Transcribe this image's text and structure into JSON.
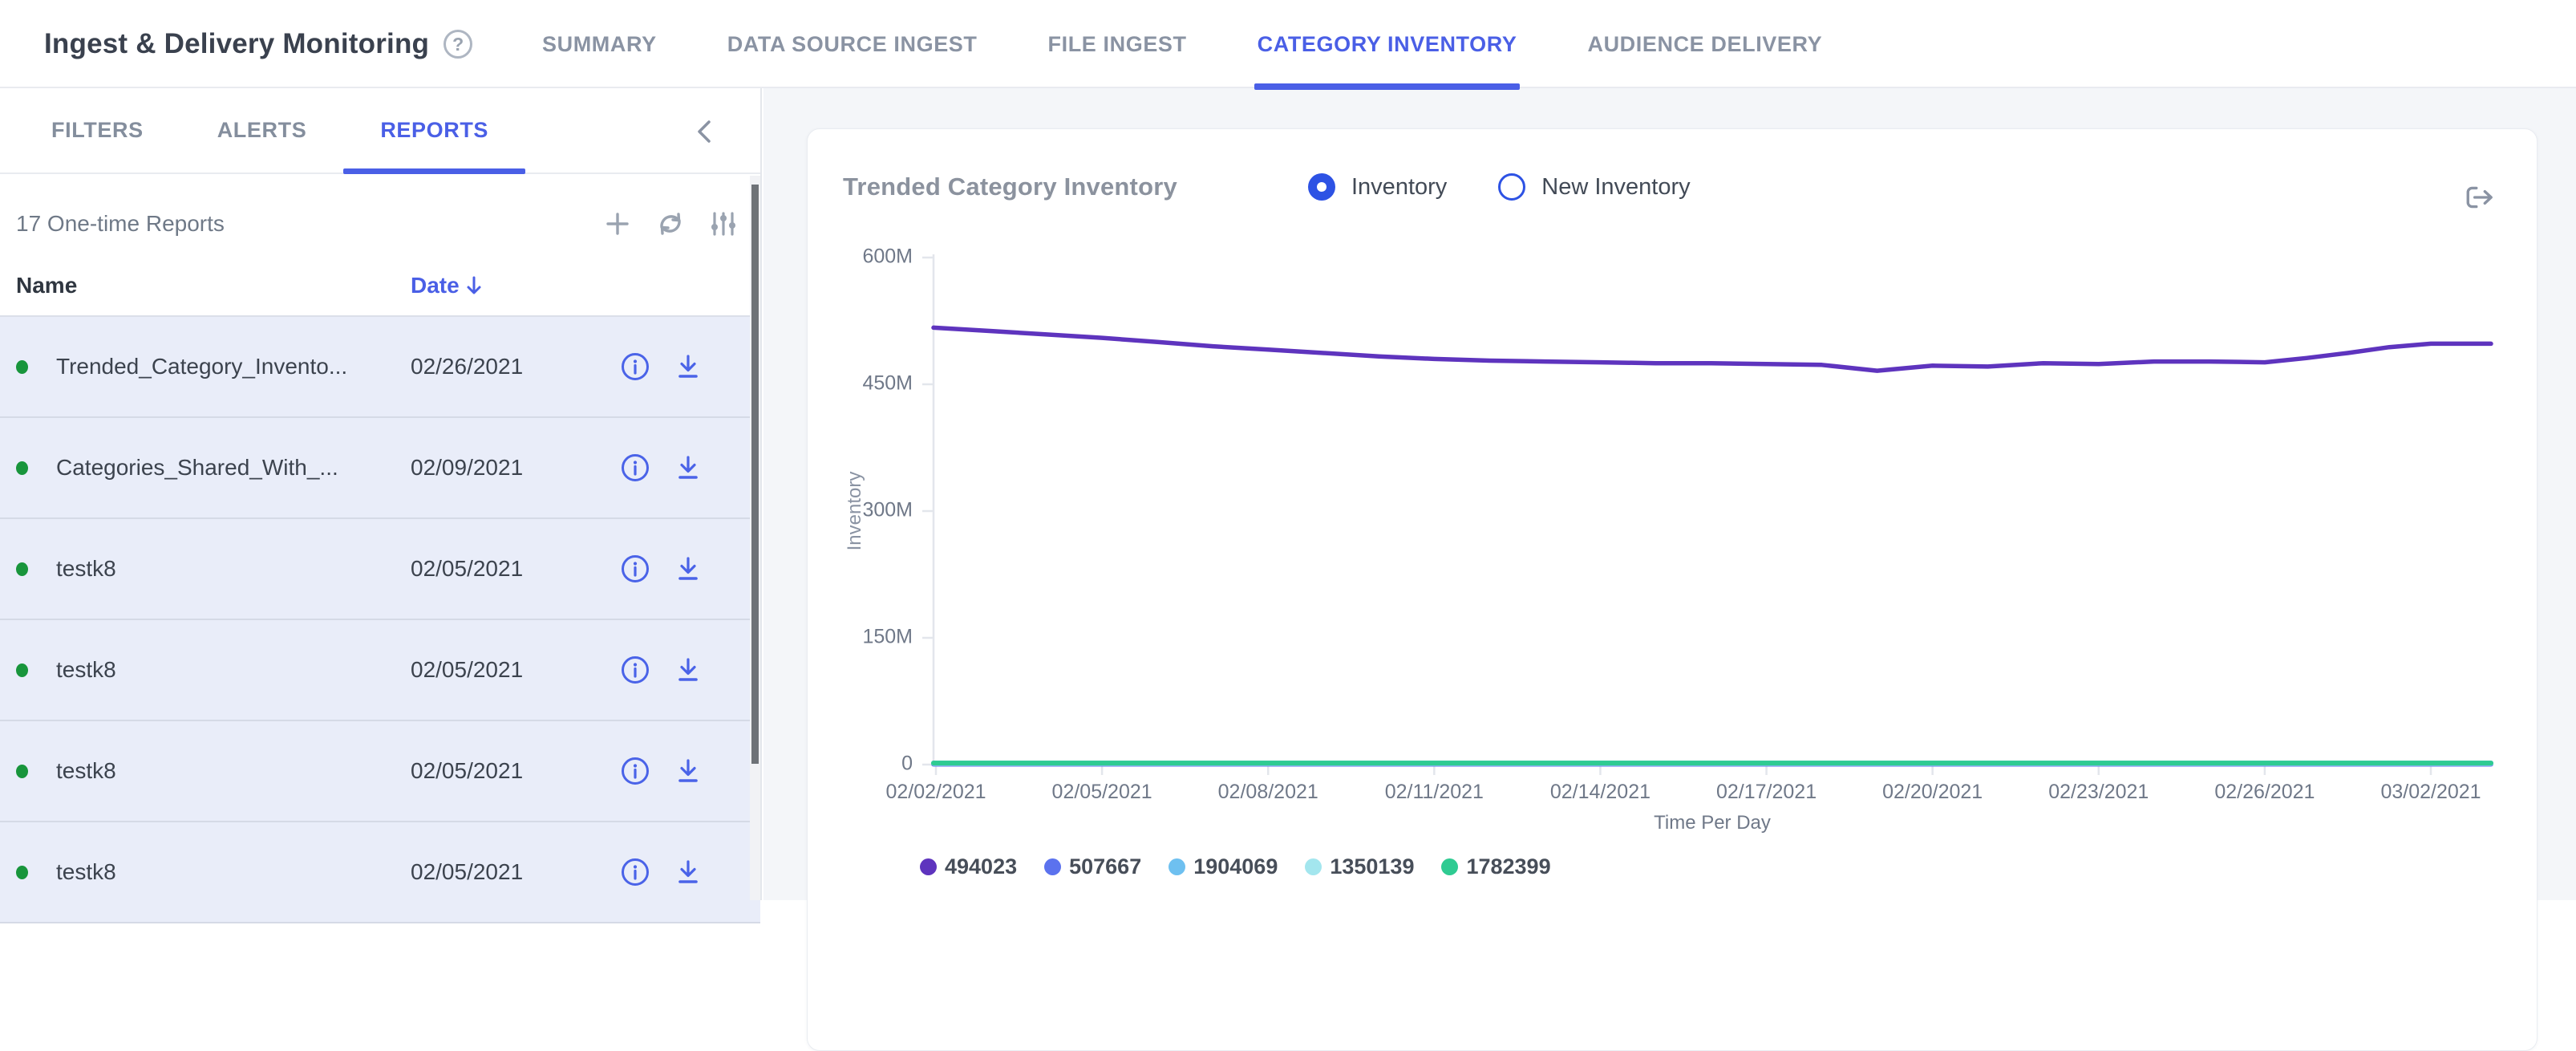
{
  "header": {
    "title": "Ingest & Delivery Monitoring",
    "help_glyph": "?",
    "tabs": [
      {
        "label": "SUMMARY",
        "active": false
      },
      {
        "label": "DATA SOURCE INGEST",
        "active": false
      },
      {
        "label": "FILE INGEST",
        "active": false
      },
      {
        "label": "CATEGORY INVENTORY",
        "active": true
      },
      {
        "label": "AUDIENCE DELIVERY",
        "active": false
      }
    ]
  },
  "sidebar": {
    "tabs": [
      {
        "label": "FILTERS",
        "active": false
      },
      {
        "label": "ALERTS",
        "active": false
      },
      {
        "label": "REPORTS",
        "active": true
      }
    ],
    "list_header": {
      "count_label": "17 One-time Reports"
    },
    "table": {
      "columns": [
        {
          "label": "Name",
          "sorted": null
        },
        {
          "label": "Date",
          "sorted": "desc"
        }
      ],
      "status_color": "#18953c",
      "rows": [
        {
          "name": "Trended_Category_Invento...",
          "date": "02/26/2021"
        },
        {
          "name": "Categories_Shared_With_...",
          "date": "02/09/2021"
        },
        {
          "name": "testk8",
          "date": "02/05/2021"
        },
        {
          "name": "testk8",
          "date": "02/05/2021"
        },
        {
          "name": "testk8",
          "date": "02/05/2021"
        },
        {
          "name": "testk8",
          "date": "02/05/2021"
        }
      ]
    }
  },
  "main": {
    "card": {
      "title": "Trended Category Inventory",
      "radios": [
        {
          "label": "Inventory",
          "selected": true
        },
        {
          "label": "New Inventory",
          "selected": false
        }
      ]
    }
  },
  "colors": {
    "accent_blue": "#4a5fe6",
    "icon_blue": "#4a63e8",
    "icon_gray": "#9aa3b0",
    "axis_text": "#6f7888",
    "axis_line": "#e3e6ec"
  },
  "chart_data": {
    "type": "line",
    "title": "Trended Category Inventory",
    "xlabel": "Time Per Day",
    "ylabel": "Inventory",
    "grid": false,
    "legend_position": "bottom",
    "ylim_m": [
      0,
      600
    ],
    "y_ticks": [
      {
        "label": "600M",
        "value_m": 600
      },
      {
        "label": "450M",
        "value_m": 450
      },
      {
        "label": "300M",
        "value_m": 300
      },
      {
        "label": "150M",
        "value_m": 150
      },
      {
        "label": "0",
        "value_m": 0
      }
    ],
    "x_tick_labels": [
      "02/02/2021",
      "02/05/2021",
      "02/08/2021",
      "02/11/2021",
      "02/14/2021",
      "02/17/2021",
      "02/20/2021",
      "02/23/2021",
      "02/26/2021",
      "03/02/2021"
    ],
    "x_tick_days": [
      0,
      3,
      6,
      9,
      12,
      15,
      18,
      21,
      24,
      28
    ],
    "x_start_date": "02/02/2021",
    "series": [
      {
        "name": "494023",
        "color": "#5e34be",
        "values_m": [
          517,
          513,
          509,
          505,
          500,
          495,
          491,
          487,
          483,
          480,
          478,
          477,
          476,
          475,
          475,
          474,
          473,
          466,
          472,
          471,
          475,
          474,
          477,
          477,
          476,
          481,
          487,
          494,
          498
        ]
      },
      {
        "name": "507667",
        "color": "#5b72ee",
        "flat_value_m": 0.51
      },
      {
        "name": "1904069",
        "color": "#6ec0f0",
        "flat_value_m": 1.9
      },
      {
        "name": "1350139",
        "color": "#a3e6ee",
        "flat_value_m": 1.35
      },
      {
        "name": "1782399",
        "color": "#2fcb92",
        "flat_value_m": 1.78
      }
    ]
  }
}
